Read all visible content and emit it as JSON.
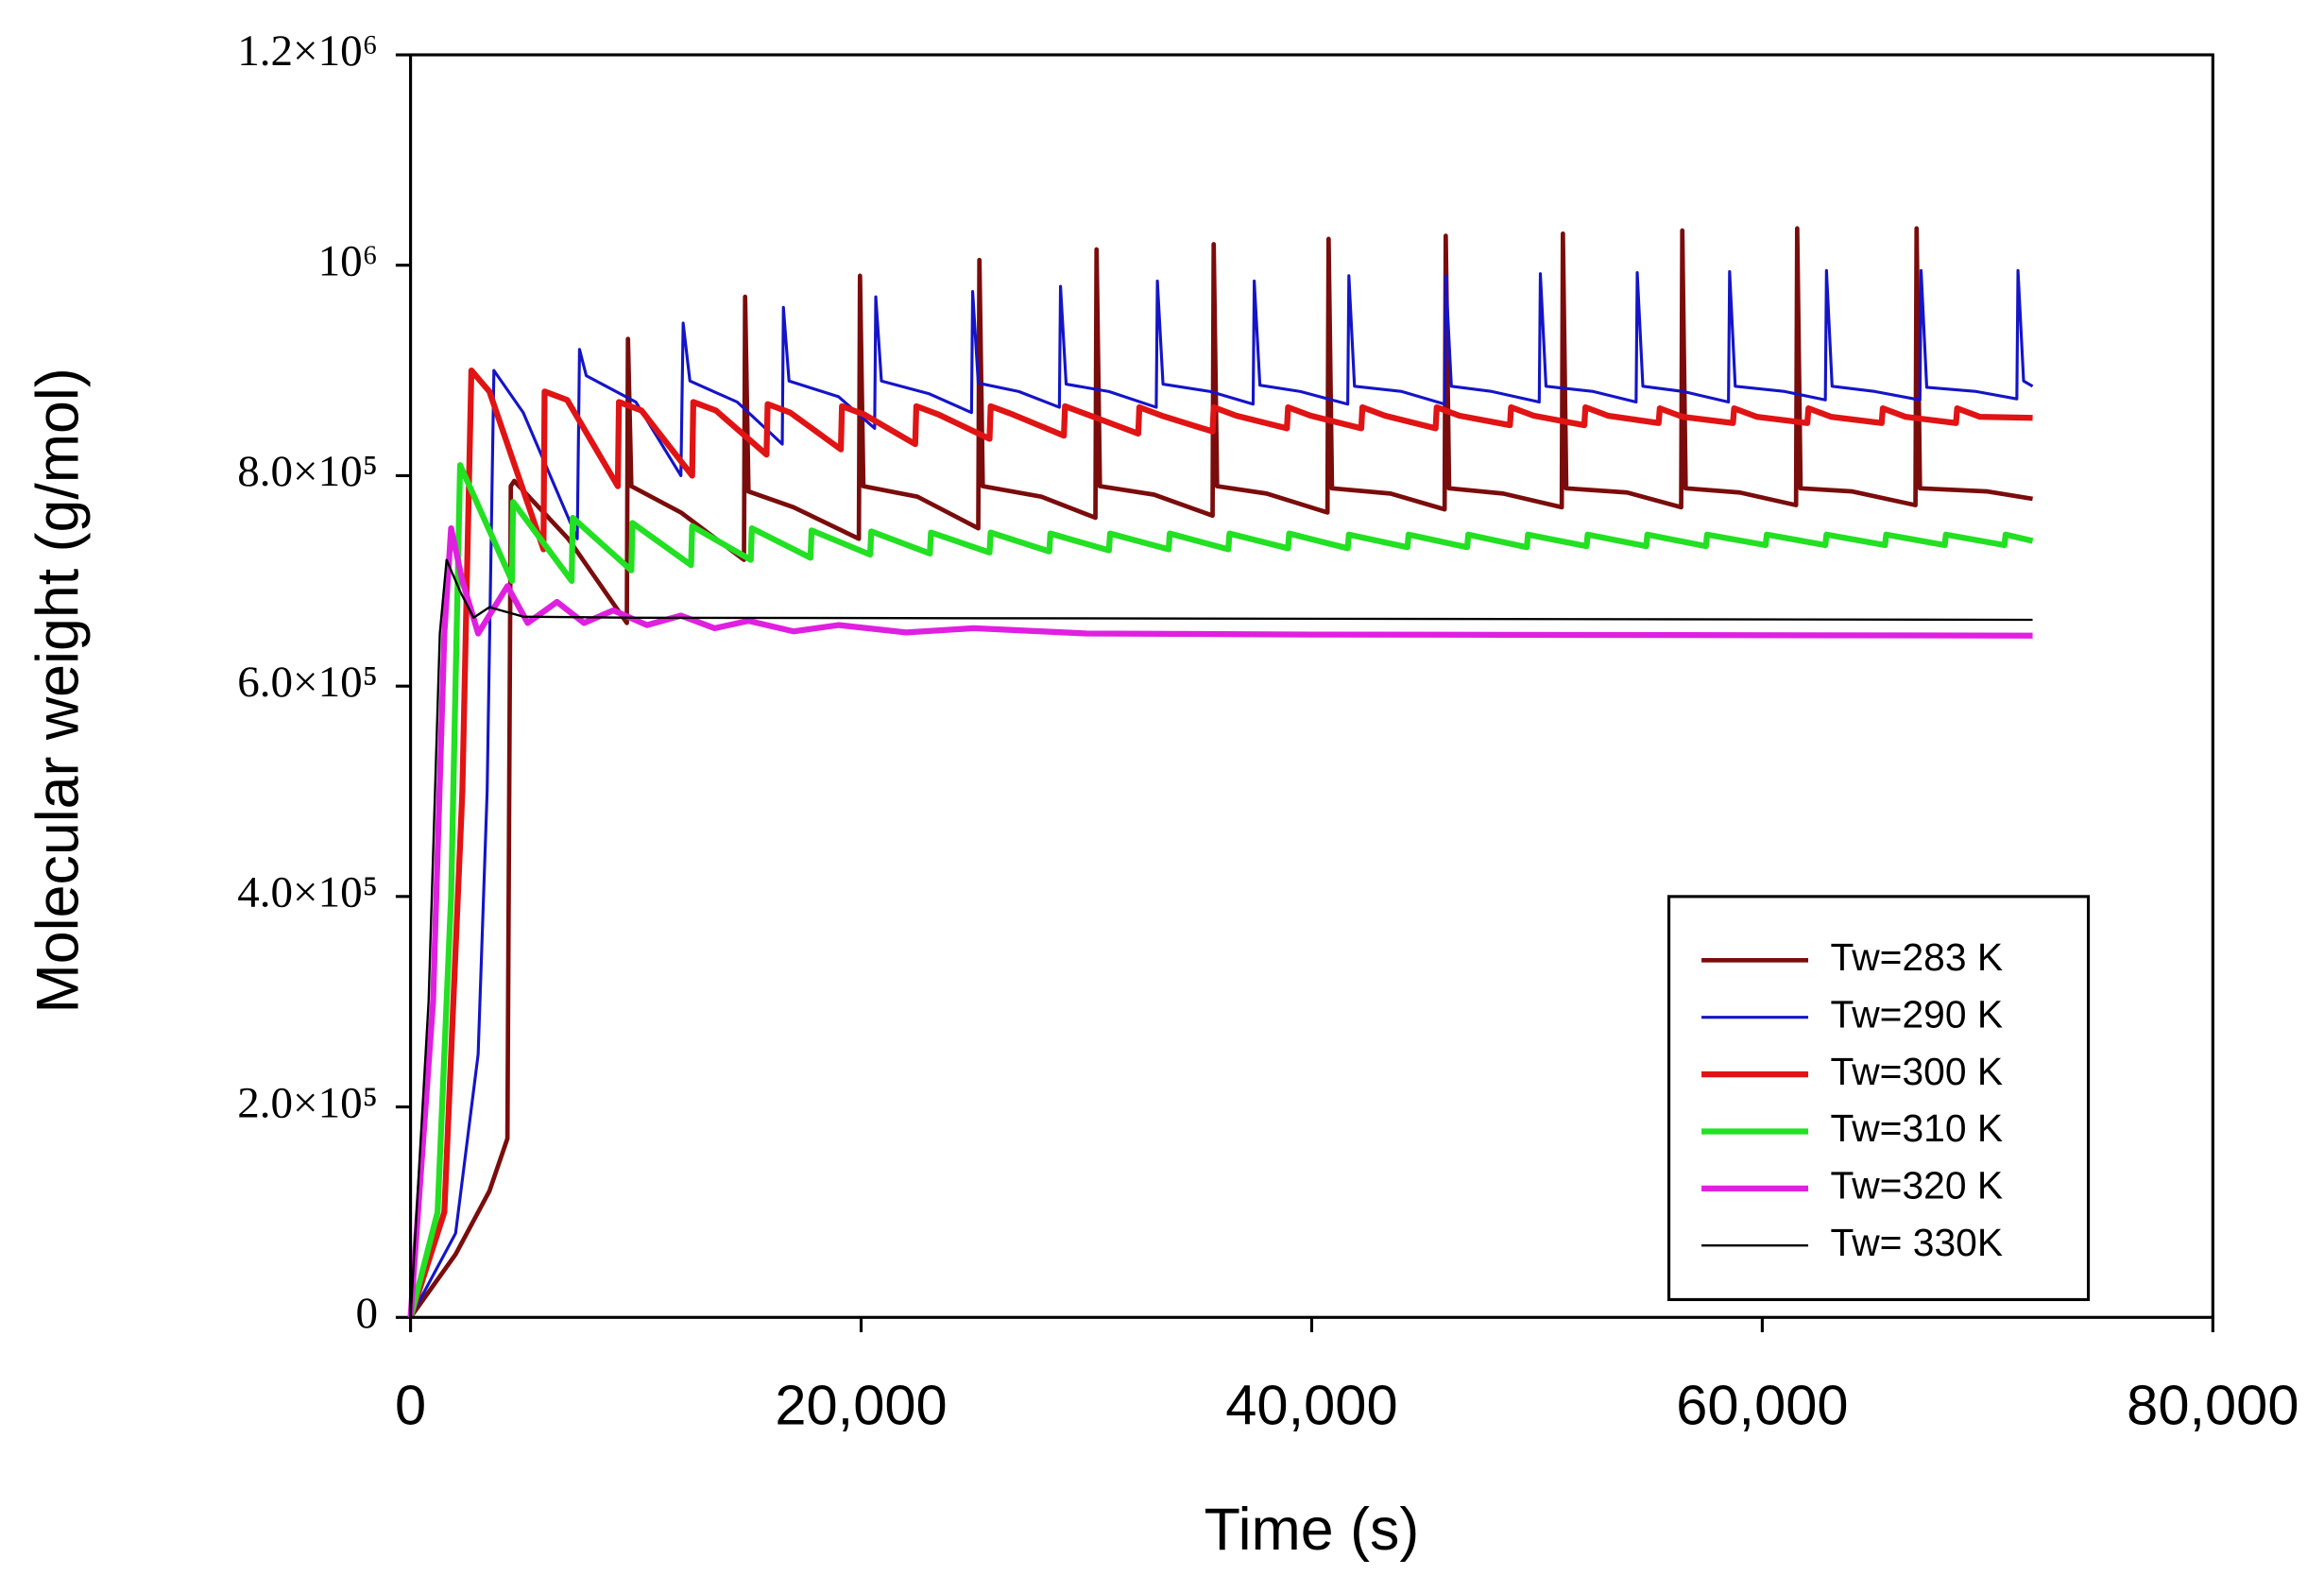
{
  "chart_data": {
    "type": "line",
    "x_label": "Time (s)",
    "y_label": "Molecular weight (g/mol)",
    "xlim": [
      0,
      80000
    ],
    "ylim": [
      0,
      1200000
    ],
    "xticks": [
      0,
      {
        "value": 20000,
        "label": "20,000"
      },
      {
        "value": 40000,
        "label": "40,000"
      },
      {
        "value": 60000,
        "label": "60,000"
      },
      {
        "value": 80000,
        "label": "80,000"
      }
    ],
    "yticks": [
      0,
      {
        "value": 200000,
        "label": "2.0×10⁵"
      },
      {
        "value": 400000,
        "label": "4.0×10⁵"
      },
      {
        "value": 600000,
        "label": "6.0×10⁵"
      },
      {
        "value": 800000,
        "label": "8.0×10⁵"
      },
      {
        "value": 1000000,
        "label": "10⁶"
      },
      {
        "value": 1200000,
        "label": "1.2×10⁶"
      }
    ],
    "grid": false,
    "legend": "lower right",
    "series": [
      {
        "name": "Tw=283 K",
        "color": "#7b0c0c",
        "line_width": 3,
        "x": [
          0,
          2000,
          3500,
          4300,
          4450,
          4600,
          7000,
          9600,
          9650,
          9800,
          12000,
          14800,
          14850,
          15000,
          17000,
          19900,
          19950,
          20100,
          22500,
          25200,
          25250,
          25400,
          28000,
          30400,
          30450,
          30600,
          33000,
          35600,
          35650,
          35800,
          38000,
          40700,
          40750,
          40900,
          43500,
          45900,
          45950,
          46100,
          48500,
          51100,
          51150,
          51300,
          54000,
          56400,
          56450,
          56600,
          59000,
          61500,
          61550,
          61700,
          64000,
          66800,
          66850,
          67000,
          70000,
          72000
        ],
        "values": [
          0,
          60000,
          120000,
          170000,
          790000,
          795000,
          740000,
          660000,
          930000,
          790000,
          765000,
          720000,
          970000,
          785000,
          770000,
          740000,
          990000,
          790000,
          780000,
          750000,
          1005000,
          790000,
          780000,
          760000,
          1015000,
          790000,
          782000,
          762000,
          1020000,
          790000,
          783000,
          765000,
          1025000,
          788000,
          783000,
          768000,
          1028000,
          788000,
          783000,
          770000,
          1030000,
          788000,
          784000,
          770000,
          1033000,
          788000,
          784000,
          772000,
          1035000,
          788000,
          785000,
          772000,
          1035000,
          788000,
          785000,
          778000
        ]
      },
      {
        "name": "Tw=290 K",
        "color": "#1414c8",
        "line_width": 2,
        "x": [
          0,
          2000,
          3000,
          3400,
          3700,
          5000,
          7400,
          7500,
          7800,
          10000,
          12000,
          12100,
          12400,
          14500,
          16500,
          16550,
          16800,
          19000,
          20600,
          20650,
          20900,
          23000,
          24900,
          24950,
          25200,
          27000,
          28800,
          28850,
          29100,
          31000,
          33100,
          33150,
          33400,
          35500,
          37400,
          37450,
          37700,
          39500,
          41600,
          41650,
          41900,
          44000,
          45900,
          45950,
          46200,
          48000,
          50100,
          50150,
          50400,
          52500,
          54400,
          54450,
          54700,
          56500,
          58500,
          58550,
          58800,
          61000,
          62800,
          62850,
          63100,
          65000,
          67000,
          67050,
          67300,
          69500,
          71300,
          71350,
          71600,
          72000
        ],
        "values": [
          0,
          80000,
          250000,
          500000,
          900000,
          860000,
          740000,
          920000,
          895000,
          870000,
          800000,
          945000,
          890000,
          870000,
          830000,
          960000,
          890000,
          875000,
          845000,
          970000,
          890000,
          878000,
          860000,
          975000,
          888000,
          880000,
          865000,
          980000,
          887000,
          880000,
          865000,
          985000,
          887000,
          880000,
          868000,
          985000,
          886000,
          880000,
          868000,
          990000,
          885000,
          880000,
          868000,
          990000,
          885000,
          880000,
          870000,
          992000,
          885000,
          880000,
          870000,
          993000,
          885000,
          880000,
          870000,
          994000,
          885000,
          880000,
          872000,
          995000,
          885000,
          880000,
          872000,
          995000,
          884000,
          880000,
          873000,
          995000,
          890000,
          885000
        ]
      },
      {
        "name": "Tw=300 K",
        "color": "#e01414",
        "line_width": 4,
        "x": [
          0,
          1500,
          2300,
          2700,
          3500,
          5900,
          5950,
          6950,
          9200,
          9250,
          10250,
          12500,
          12550,
          13550,
          15800,
          15850,
          16850,
          19100,
          19150,
          20150,
          22400,
          22450,
          23450,
          25700,
          25750,
          26750,
          29000,
          29050,
          30050,
          32300,
          32350,
          33350,
          35600,
          35650,
          36650,
          38900,
          38950,
          39950,
          42200,
          42250,
          43250,
          45500,
          45550,
          46550,
          48800,
          48850,
          49850,
          52100,
          52150,
          53150,
          55400,
          55450,
          56450,
          58700,
          58750,
          59750,
          62000,
          62050,
          63050,
          65300,
          65350,
          66350,
          68600,
          68650,
          69650,
          72000
        ],
        "values": [
          0,
          100000,
          500000,
          900000,
          880000,
          730000,
          880000,
          872000,
          790000,
          870000,
          862000,
          800000,
          870000,
          862000,
          820000,
          868000,
          860000,
          825000,
          866000,
          858000,
          830000,
          866000,
          858000,
          835000,
          866000,
          858000,
          838000,
          866000,
          858000,
          840000,
          865000,
          857000,
          842000,
          865000,
          857000,
          845000,
          865000,
          857000,
          845000,
          865000,
          857000,
          845000,
          865000,
          857000,
          848000,
          865000,
          857000,
          848000,
          865000,
          857000,
          850000,
          864000,
          856000,
          850000,
          864000,
          856000,
          850000,
          864000,
          856000,
          850000,
          864000,
          856000,
          850000,
          864000,
          856000,
          855000
        ]
      },
      {
        "name": "Tw=310 K",
        "color": "#22e022",
        "line_width": 4,
        "x": [
          0,
          1200,
          1800,
          2200,
          4500,
          4550,
          7150,
          7200,
          9800,
          9850,
          12450,
          12500,
          15100,
          15150,
          17750,
          17800,
          20400,
          20450,
          23050,
          23100,
          25700,
          25750,
          28350,
          28400,
          31000,
          31050,
          33650,
          33700,
          36300,
          36350,
          38950,
          39000,
          41600,
          41650,
          44250,
          44300,
          46900,
          46950,
          49550,
          49600,
          52200,
          52250,
          54850,
          54900,
          57500,
          57550,
          60150,
          60200,
          62800,
          62850,
          65450,
          65500,
          68100,
          68150,
          70750,
          70800,
          72000
        ],
        "values": [
          0,
          100000,
          400000,
          810000,
          700000,
          775000,
          700000,
          760000,
          710000,
          755000,
          715000,
          752000,
          720000,
          750000,
          722000,
          748000,
          725000,
          747000,
          726000,
          746000,
          727000,
          746000,
          728000,
          745000,
          729000,
          745000,
          730000,
          745000,
          730000,
          745000,
          731000,
          745000,
          731000,
          744000,
          732000,
          744000,
          732000,
          744000,
          732000,
          744000,
          733000,
          744000,
          733000,
          744000,
          733000,
          744000,
          734000,
          744000,
          734000,
          744000,
          734000,
          744000,
          734000,
          744000,
          734000,
          744000,
          738000
        ]
      },
      {
        "name": "Tw=320 K",
        "color": "#e020e0",
        "line_width": 4,
        "x": [
          0,
          1000,
          1500,
          1800,
          2300,
          3000,
          4300,
          5200,
          6500,
          7700,
          9000,
          10500,
          12000,
          13500,
          15000,
          17000,
          19000,
          22000,
          25000,
          30000,
          40000,
          72000
        ],
        "values": [
          0,
          300000,
          650000,
          750000,
          700000,
          650000,
          695000,
          660000,
          680000,
          660000,
          672000,
          658000,
          667000,
          655000,
          662000,
          652000,
          658000,
          651000,
          655000,
          650000,
          649000,
          648000
        ]
      },
      {
        "name": "Tw= 330K",
        "color": "#000000",
        "line_width": 1.5,
        "x": [
          0,
          800,
          1300,
          1600,
          2200,
          2800,
          3500,
          5000,
          10000,
          72000
        ],
        "values": [
          0,
          300000,
          650000,
          720000,
          690000,
          665000,
          675000,
          666000,
          665000,
          663000
        ]
      }
    ]
  }
}
